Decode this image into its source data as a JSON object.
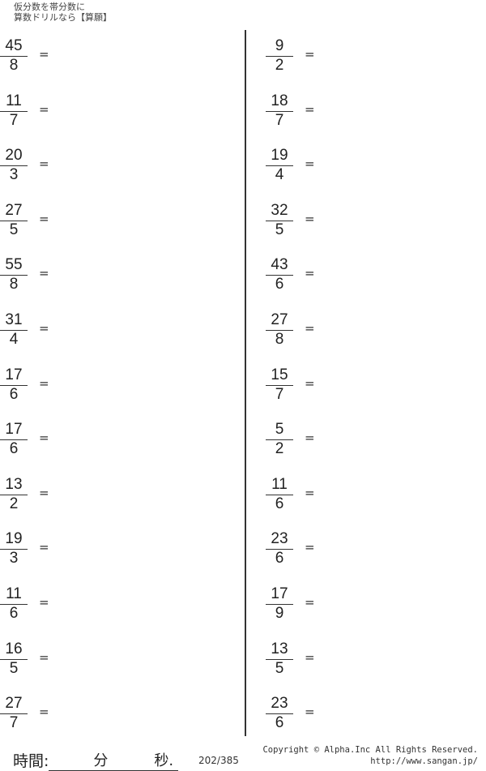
{
  "header": {
    "line1": "仮分数を帯分数に",
    "line2": "算数ドリルなら【算願】"
  },
  "left_problems": [
    {
      "num": "45",
      "den": "8"
    },
    {
      "num": "11",
      "den": "7"
    },
    {
      "num": "20",
      "den": "3"
    },
    {
      "num": "27",
      "den": "5"
    },
    {
      "num": "55",
      "den": "8"
    },
    {
      "num": "31",
      "den": "4"
    },
    {
      "num": "17",
      "den": "6"
    },
    {
      "num": "17",
      "den": "6"
    },
    {
      "num": "13",
      "den": "2"
    },
    {
      "num": "19",
      "den": "3"
    },
    {
      "num": "11",
      "den": "6"
    },
    {
      "num": "16",
      "den": "5"
    },
    {
      "num": "27",
      "den": "7"
    }
  ],
  "right_problems": [
    {
      "num": "9",
      "den": "2"
    },
    {
      "num": "18",
      "den": "7"
    },
    {
      "num": "19",
      "den": "4"
    },
    {
      "num": "32",
      "den": "5"
    },
    {
      "num": "43",
      "den": "6"
    },
    {
      "num": "27",
      "den": "8"
    },
    {
      "num": "15",
      "den": "7"
    },
    {
      "num": "5",
      "den": "2"
    },
    {
      "num": "11",
      "den": "6"
    },
    {
      "num": "23",
      "den": "6"
    },
    {
      "num": "17",
      "den": "9"
    },
    {
      "num": "13",
      "den": "5"
    },
    {
      "num": "23",
      "den": "6"
    }
  ],
  "equals": "=",
  "footer": {
    "time_label": "時間:",
    "minutes_label": "分",
    "seconds_label": "秒.",
    "page": "202/385",
    "copyright": "Copyright ©  Alpha.Inc All Rights Reserved.",
    "url": "http://www.sangan.jp/"
  }
}
